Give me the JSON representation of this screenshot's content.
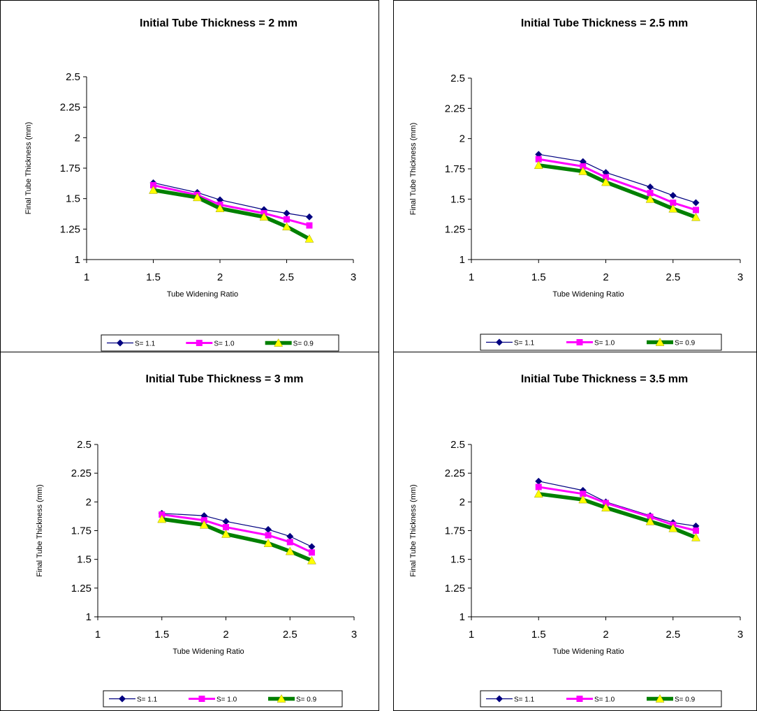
{
  "chart_data": [
    {
      "type": "line",
      "title": "Initial Tube Thickness = 2 mm",
      "xlabel": "Tube Widening Ratio",
      "ylabel": "Final Tube Thickness (mm)",
      "xlim": [
        1,
        3
      ],
      "ylim": [
        1,
        2.5
      ],
      "xticks": [
        "1",
        "1.5",
        "2",
        "2.5",
        "3"
      ],
      "yticks": [
        "1",
        "1.25",
        "1.5",
        "1.75",
        "2",
        "2.25",
        "2.5"
      ],
      "legend": "bottom",
      "x": [
        1.5,
        1.83,
        2.0,
        2.33,
        2.5,
        2.67
      ],
      "series": [
        {
          "name": "S= 1.1",
          "color": "#000080",
          "marker": "diamond",
          "values": [
            1.63,
            1.55,
            1.49,
            1.41,
            1.38,
            1.35
          ]
        },
        {
          "name": "S= 1.0",
          "color": "#ff00ff",
          "marker": "square",
          "values": [
            1.61,
            1.53,
            1.45,
            1.38,
            1.33,
            1.28
          ]
        },
        {
          "name": "S= 0.9",
          "color": "#008000",
          "marker": "triangle",
          "values": [
            1.57,
            1.51,
            1.42,
            1.35,
            1.27,
            1.17
          ]
        }
      ]
    },
    {
      "type": "line",
      "title": "Initial Tube Thickness = 2.5 mm",
      "xlabel": "Tube Widening Ratio",
      "ylabel": "Final Tube Thickness (mm)",
      "xlim": [
        1,
        3
      ],
      "ylim": [
        1,
        2.5
      ],
      "xticks": [
        "1",
        "1.5",
        "2",
        "2.5",
        "3"
      ],
      "yticks": [
        "1",
        "1.25",
        "1.5",
        "1.75",
        "2",
        "2.25",
        "2.5"
      ],
      "legend": "bottom",
      "x": [
        1.5,
        1.83,
        2.0,
        2.33,
        2.5,
        2.67
      ],
      "series": [
        {
          "name": "S= 1.1",
          "color": "#000080",
          "marker": "diamond",
          "values": [
            1.87,
            1.81,
            1.72,
            1.6,
            1.53,
            1.47
          ]
        },
        {
          "name": "S= 1.0",
          "color": "#ff00ff",
          "marker": "square",
          "values": [
            1.83,
            1.77,
            1.68,
            1.55,
            1.47,
            1.41
          ]
        },
        {
          "name": "S= 0.9",
          "color": "#008000",
          "marker": "triangle",
          "values": [
            1.78,
            1.73,
            1.64,
            1.5,
            1.42,
            1.35
          ]
        }
      ]
    },
    {
      "type": "line",
      "title": "Initial Tube Thickness = 3 mm",
      "xlabel": "Tube Widening Ratio",
      "ylabel": "Final Tube Thickness (mm)",
      "xlim": [
        1,
        3
      ],
      "ylim": [
        1,
        2.5
      ],
      "xticks": [
        "1",
        "1.5",
        "2",
        "2.5",
        "3"
      ],
      "yticks": [
        "1",
        "1.25",
        "1.5",
        "1.75",
        "2",
        "2.25",
        "2.5"
      ],
      "legend": "bottom",
      "x": [
        1.5,
        1.83,
        2.0,
        2.33,
        2.5,
        2.67
      ],
      "series": [
        {
          "name": "S= 1.1",
          "color": "#000080",
          "marker": "diamond",
          "values": [
            1.9,
            1.88,
            1.83,
            1.76,
            1.7,
            1.61
          ]
        },
        {
          "name": "S= 1.0",
          "color": "#ff00ff",
          "marker": "square",
          "values": [
            1.89,
            1.84,
            1.78,
            1.71,
            1.65,
            1.56
          ]
        },
        {
          "name": "S= 0.9",
          "color": "#008000",
          "marker": "triangle",
          "values": [
            1.85,
            1.8,
            1.72,
            1.64,
            1.57,
            1.49
          ]
        }
      ]
    },
    {
      "type": "line",
      "title": "Initial Tube Thickness = 3.5 mm",
      "xlabel": "Tube Widening Ratio",
      "ylabel": "Final Tube Thickness (mm)",
      "xlim": [
        1,
        3
      ],
      "ylim": [
        1,
        2.5
      ],
      "xticks": [
        "1",
        "1.5",
        "2",
        "2.5",
        "3"
      ],
      "yticks": [
        "1",
        "1.25",
        "1.5",
        "1.75",
        "2",
        "2.25",
        "2.5"
      ],
      "legend": "bottom",
      "x": [
        1.5,
        1.83,
        2.0,
        2.33,
        2.5,
        2.67
      ],
      "series": [
        {
          "name": "S= 1.1",
          "color": "#000080",
          "marker": "diamond",
          "values": [
            2.18,
            2.1,
            2.0,
            1.88,
            1.82,
            1.79
          ]
        },
        {
          "name": "S= 1.0",
          "color": "#ff00ff",
          "marker": "square",
          "values": [
            2.13,
            2.07,
            1.99,
            1.87,
            1.8,
            1.75
          ]
        },
        {
          "name": "S= 0.9",
          "color": "#008000",
          "marker": "triangle",
          "values": [
            2.07,
            2.02,
            1.95,
            1.83,
            1.77,
            1.69
          ]
        }
      ]
    }
  ]
}
